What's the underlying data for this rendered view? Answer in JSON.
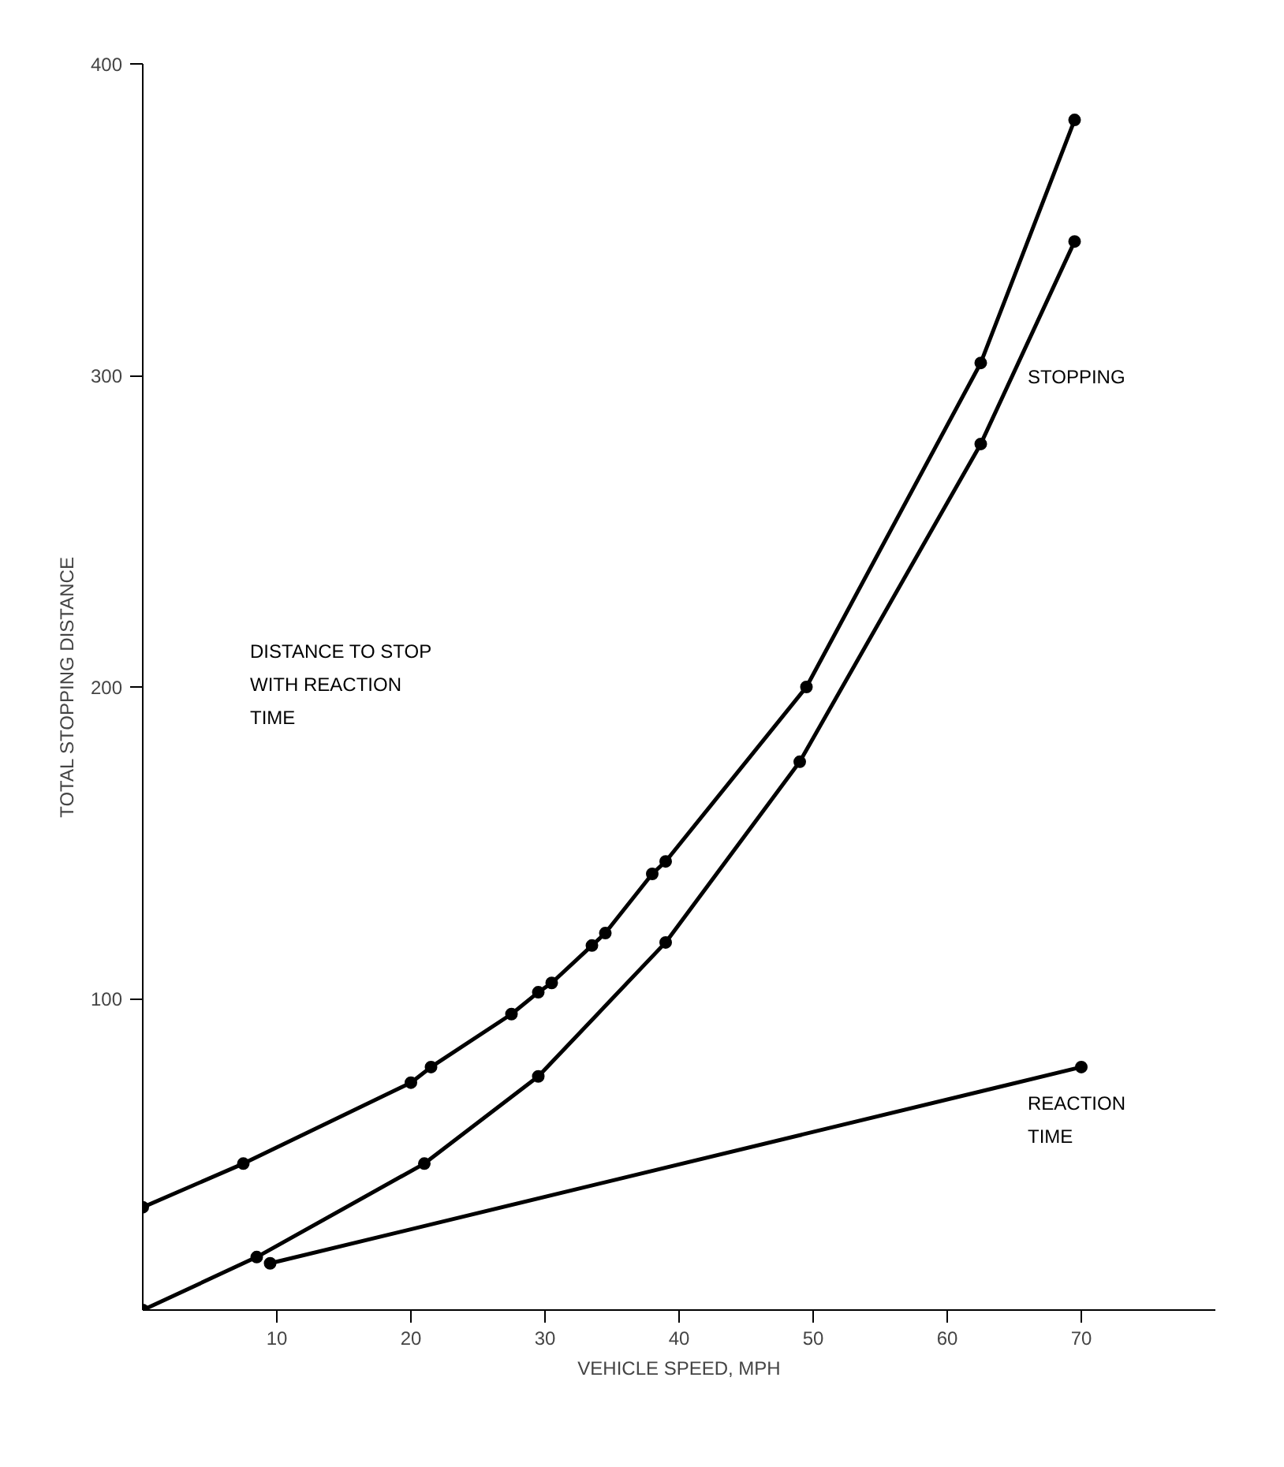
{
  "chart_data": {
    "type": "line",
    "xlabel": "VEHICLE SPEED, MPH",
    "ylabel": "TOTAL STOPPING DISTANCE",
    "xlim": [
      0,
      80
    ],
    "ylim": [
      0,
      400
    ],
    "xticks": [
      10,
      20,
      30,
      40,
      50,
      60,
      70
    ],
    "yticks": [
      100,
      200,
      300,
      400
    ],
    "annotations": [
      "DISTANCE TO STOP\nWITH REACTION\nTIME"
    ],
    "grid": false,
    "marker": "circle",
    "line_style": "solid",
    "series": [
      {
        "color": "#000000",
        "x": [
          0,
          7.5,
          20,
          21.5,
          27.5,
          29.5,
          30.5,
          33.5,
          34.5,
          38,
          39,
          49.5,
          62.5,
          69.5
        ],
        "values": [
          33,
          47,
          73,
          78,
          95,
          102,
          105,
          117,
          121,
          140,
          144,
          200,
          304,
          382
        ]
      },
      {
        "name": "STOPPING",
        "color": "#000000",
        "x": [
          0,
          8.5,
          21,
          29.5,
          39,
          49,
          62.5,
          69.5
        ],
        "values": [
          0,
          17,
          47,
          75,
          118,
          176,
          278,
          343
        ]
      },
      {
        "name": "REACTION\nTIME",
        "color": "#000000",
        "x": [
          9.5,
          70
        ],
        "values": [
          15,
          78
        ]
      }
    ]
  }
}
